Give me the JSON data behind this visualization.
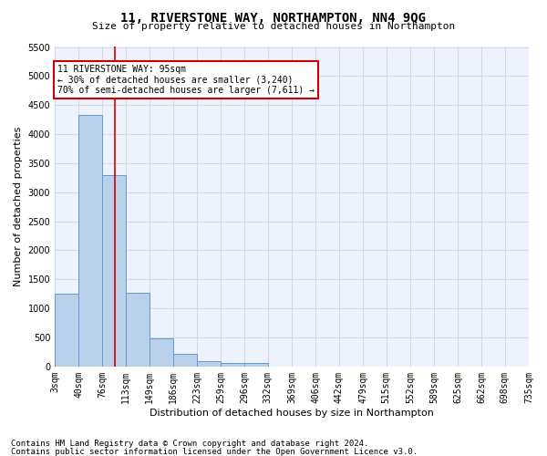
{
  "title": "11, RIVERSTONE WAY, NORTHAMPTON, NN4 9QG",
  "subtitle": "Size of property relative to detached houses in Northampton",
  "xlabel": "Distribution of detached houses by size in Northampton",
  "ylabel": "Number of detached properties",
  "footnote1": "Contains HM Land Registry data © Crown copyright and database right 2024.",
  "footnote2": "Contains public sector information licensed under the Open Government Licence v3.0.",
  "annotation_title": "11 RIVERSTONE WAY: 95sqm",
  "annotation_line1": "← 30% of detached houses are smaller (3,240)",
  "annotation_line2": "70% of semi-detached houses are larger (7,611) →",
  "property_size_sqm": 95,
  "bar_edges": [
    3,
    40,
    76,
    113,
    149,
    186,
    223,
    259,
    296,
    332,
    369,
    406,
    442,
    479,
    515,
    552,
    589,
    625,
    662,
    698,
    735
  ],
  "bar_heights": [
    1260,
    4330,
    3300,
    1270,
    480,
    215,
    85,
    55,
    55,
    0,
    0,
    0,
    0,
    0,
    0,
    0,
    0,
    0,
    0,
    0
  ],
  "bar_color": "#b8d0ea",
  "bar_edge_color": "#6699cc",
  "grid_color": "#d0d8ee",
  "annotation_box_color": "#cc0000",
  "vline_color": "#cc0000",
  "ylim": [
    0,
    5500
  ],
  "yticks": [
    0,
    500,
    1000,
    1500,
    2000,
    2500,
    3000,
    3500,
    4000,
    4500,
    5000,
    5500
  ],
  "bg_color": "#eef2fc",
  "fig_bg_color": "#ffffff",
  "title_fontsize": 10,
  "subtitle_fontsize": 8,
  "ylabel_fontsize": 8,
  "xlabel_fontsize": 8,
  "tick_fontsize": 7,
  "annot_fontsize": 7,
  "footnote_fontsize": 6.5
}
